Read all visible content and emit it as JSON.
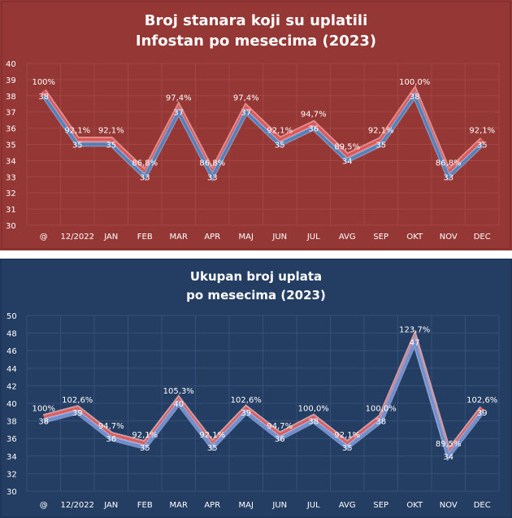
{
  "chart_data": [
    {
      "type": "line",
      "title_lines": [
        "Broj stanara  koji su uplatili",
        "Infostan  po mesecima  (2023)"
      ],
      "categories": [
        "@",
        "12/2022",
        "JAN",
        "FEB",
        "MAR",
        "APR",
        "MAJ",
        "JUN",
        "JUL",
        "AVG",
        "SEP",
        "OKT",
        "NOV",
        "DEC"
      ],
      "ylim": [
        30,
        40
      ],
      "yticks": [
        "30",
        "31",
        "32",
        "33",
        "34",
        "35",
        "36",
        "37",
        "38",
        "39",
        "40"
      ],
      "grid": true,
      "series": [
        {
          "values": [
            38,
            35,
            35,
            33,
            37,
            33,
            37,
            35,
            36,
            34,
            35,
            38,
            33,
            35
          ],
          "labels": [
            "38",
            "35",
            "35",
            "33",
            "37",
            "33",
            "37",
            "35",
            "36",
            "34",
            "35",
            "38",
            "33",
            "35"
          ],
          "color": "#4f81bd"
        },
        {
          "values": [
            100.0,
            92.1,
            92.1,
            86.8,
            97.4,
            86.8,
            97.4,
            92.1,
            94.7,
            89.5,
            92.1,
            100.0,
            86.8,
            92.1
          ],
          "labels": [
            "100%",
            "92,1%",
            "92,1%",
            "86,8%",
            "97,4%",
            "86,8%",
            "97,4%",
            "92,1%",
            "94,7%",
            "89,5%",
            "92,1%",
            "100,0%",
            "86,8%",
            "92,1%"
          ],
          "color": "#e05555"
        }
      ]
    },
    {
      "type": "line",
      "title_lines": [
        "Ukupan broj uplata",
        "po mesecima (2023)"
      ],
      "categories": [
        "@",
        "12/2022",
        "JAN",
        "FEB",
        "MAR",
        "APR",
        "MAJ",
        "JUN",
        "JUL",
        "AVG",
        "SEP",
        "OKT",
        "NOV",
        "DEC"
      ],
      "ylim": [
        30,
        50
      ],
      "yticks": [
        "30",
        "32",
        "34",
        "36",
        "38",
        "40",
        "42",
        "44",
        "46",
        "48",
        "50"
      ],
      "grid": true,
      "series": [
        {
          "values": [
            38,
            39,
            36,
            35,
            40,
            35,
            39,
            36,
            38,
            35,
            38,
            47,
            34,
            39
          ],
          "labels": [
            "38",
            "39",
            "36",
            "35",
            "40",
            "35",
            "39",
            "36",
            "38",
            "35",
            "38",
            "47",
            "34",
            "39"
          ],
          "color": "#6f8fd0"
        },
        {
          "values": [
            100.0,
            102.6,
            94.7,
            92.1,
            105.3,
            92.1,
            102.6,
            94.7,
            100.0,
            92.1,
            100.0,
            123.7,
            89.5,
            102.6
          ],
          "labels": [
            "100%",
            "102,6%",
            "94,7%",
            "92,1%",
            "105,3%",
            "92,1%",
            "102,6%",
            "94,7%",
            "100,0%",
            "92,1%",
            "100,0%",
            "123,7%",
            "89,5%",
            "102,6%"
          ],
          "color": "#e05a5a"
        }
      ]
    }
  ]
}
